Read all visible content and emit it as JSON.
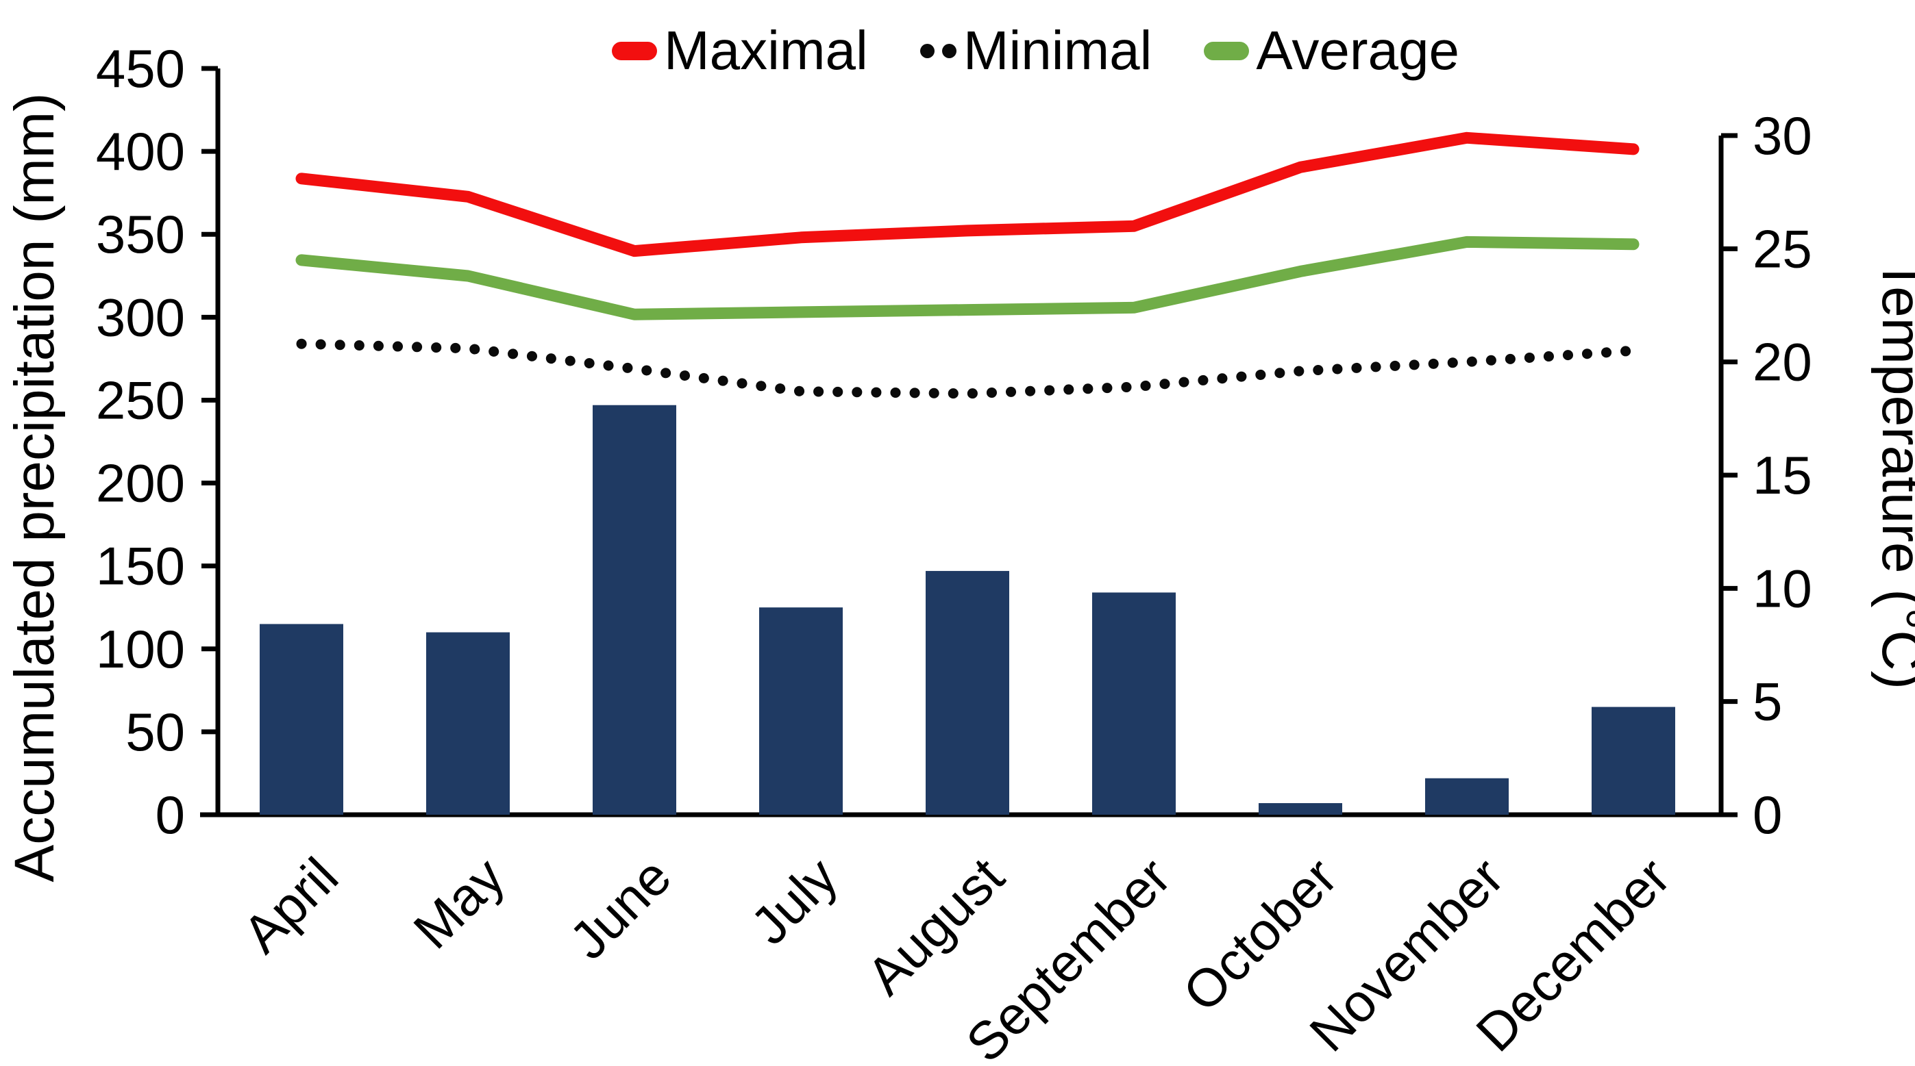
{
  "chart_data": {
    "type": "bar+line combo",
    "categories": [
      "April",
      "May",
      "June",
      "July",
      "August",
      "September",
      "October",
      "November",
      "December"
    ],
    "bar_series": {
      "name": "Accumulated precipitation",
      "axis": "left",
      "color": "#1f3a63",
      "values": [
        115,
        110,
        247,
        125,
        147,
        134,
        7,
        22,
        65
      ]
    },
    "line_series": [
      {
        "name": "Maximal",
        "axis": "right",
        "color": "#f20f0f",
        "style": "solid",
        "values": [
          28.1,
          27.3,
          24.9,
          25.5,
          25.8,
          26.0,
          28.6,
          29.9,
          29.4
        ]
      },
      {
        "name": "Minimal",
        "axis": "right",
        "color": "#0a0a0a",
        "style": "dotted",
        "values": [
          20.8,
          20.6,
          19.7,
          18.7,
          18.6,
          18.9,
          19.6,
          20.0,
          20.5
        ]
      },
      {
        "name": "Average",
        "axis": "right",
        "color": "#70ad47",
        "style": "solid",
        "values": [
          24.5,
          23.8,
          22.1,
          22.2,
          22.3,
          22.4,
          24.0,
          25.3,
          25.2
        ]
      }
    ],
    "left_axis": {
      "label": "Accumulated precipitation (mm)",
      "min": 0,
      "max": 450,
      "step": 50,
      "ticks": [
        "450",
        "400",
        "350",
        "300",
        "250",
        "200",
        "150",
        "100",
        "50",
        "0"
      ]
    },
    "right_axis": {
      "label": "Temperature (°C)",
      "min": 0,
      "max": 30,
      "step": 5,
      "ticks": [
        "30",
        "25",
        "20",
        "15",
        "10",
        "5",
        "0"
      ]
    },
    "legend_position": "top-center",
    "grid": false,
    "x_tick_rotation_deg": -45
  }
}
